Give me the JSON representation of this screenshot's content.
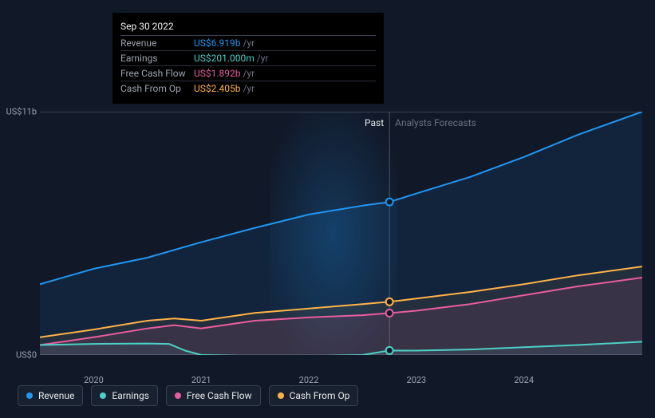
{
  "chart": {
    "background_color": "#111827",
    "grid_color": "#374151",
    "y_axis": {
      "min": 0,
      "max": 11,
      "labels": [
        {
          "value": 0,
          "text": "US$0"
        },
        {
          "value": 11,
          "text": "US$11b"
        }
      ]
    },
    "x_axis": {
      "min": 2019.5,
      "max": 2025.1,
      "ticks": [
        2020,
        2021,
        2022,
        2023,
        2024
      ]
    },
    "cursor_x": 2022.75,
    "period_labels": {
      "past": "Past",
      "forecast": "Analysts Forecasts"
    },
    "series": [
      {
        "id": "revenue",
        "label": "Revenue",
        "color": "#2196f3",
        "fill_opacity": 0.1,
        "points": [
          [
            2019.5,
            3.2
          ],
          [
            2020,
            3.9
          ],
          [
            2020.5,
            4.4
          ],
          [
            2021,
            5.1
          ],
          [
            2021.5,
            5.75
          ],
          [
            2022,
            6.35
          ],
          [
            2022.5,
            6.75
          ],
          [
            2022.75,
            6.919
          ],
          [
            2023,
            7.3
          ],
          [
            2023.5,
            8.05
          ],
          [
            2024,
            8.95
          ],
          [
            2024.5,
            9.95
          ],
          [
            2025.1,
            11.0
          ]
        ]
      },
      {
        "id": "cash_from_op",
        "label": "Cash From Op",
        "color": "#ffb347",
        "fill_opacity": 0.08,
        "points": [
          [
            2019.5,
            0.8
          ],
          [
            2020,
            1.15
          ],
          [
            2020.5,
            1.55
          ],
          [
            2020.75,
            1.65
          ],
          [
            2021,
            1.55
          ],
          [
            2021.5,
            1.9
          ],
          [
            2022,
            2.1
          ],
          [
            2022.5,
            2.3
          ],
          [
            2022.75,
            2.405
          ],
          [
            2023,
            2.55
          ],
          [
            2023.5,
            2.85
          ],
          [
            2024,
            3.2
          ],
          [
            2024.5,
            3.6
          ],
          [
            2025.1,
            4.0
          ]
        ]
      },
      {
        "id": "free_cash_flow",
        "label": "Free Cash Flow",
        "color": "#e85d9e",
        "fill_opacity": 0.1,
        "points": [
          [
            2019.5,
            0.45
          ],
          [
            2020,
            0.8
          ],
          [
            2020.5,
            1.2
          ],
          [
            2020.75,
            1.35
          ],
          [
            2021,
            1.2
          ],
          [
            2021.5,
            1.55
          ],
          [
            2022,
            1.7
          ],
          [
            2022.5,
            1.8
          ],
          [
            2022.75,
            1.892
          ],
          [
            2023,
            2.0
          ],
          [
            2023.5,
            2.3
          ],
          [
            2024,
            2.7
          ],
          [
            2024.5,
            3.1
          ],
          [
            2025.1,
            3.5
          ]
        ]
      },
      {
        "id": "earnings",
        "label": "Earnings",
        "color": "#4dd0c7",
        "fill_opacity": 0.08,
        "points": [
          [
            2019.5,
            0.45
          ],
          [
            2020,
            0.5
          ],
          [
            2020.5,
            0.52
          ],
          [
            2020.7,
            0.5
          ],
          [
            2020.85,
            0.2
          ],
          [
            2021,
            0.0
          ],
          [
            2021.5,
            -0.05
          ],
          [
            2022,
            -0.05
          ],
          [
            2022.5,
            0.0
          ],
          [
            2022.75,
            0.201
          ],
          [
            2023,
            0.2
          ],
          [
            2023.5,
            0.25
          ],
          [
            2024,
            0.35
          ],
          [
            2024.5,
            0.45
          ],
          [
            2025.1,
            0.6
          ]
        ]
      }
    ],
    "cursor_points": [
      {
        "series": "revenue",
        "y": 6.919,
        "color": "#2196f3"
      },
      {
        "series": "cash_from_op",
        "y": 2.405,
        "color": "#ffb347"
      },
      {
        "series": "free_cash_flow",
        "y": 1.892,
        "color": "#e85d9e"
      },
      {
        "series": "earnings",
        "y": 0.201,
        "color": "#4dd0c7"
      }
    ]
  },
  "tooltip": {
    "date": "Sep 30 2022",
    "rows": [
      {
        "label": "Revenue",
        "value": "US$6.919b",
        "unit": "/yr",
        "color": "#2196f3"
      },
      {
        "label": "Earnings",
        "value": "US$201.000m",
        "unit": "/yr",
        "color": "#4dd0c7"
      },
      {
        "label": "Free Cash Flow",
        "value": "US$1.892b",
        "unit": "/yr",
        "color": "#e85d9e"
      },
      {
        "label": "Cash From Op",
        "value": "US$2.405b",
        "unit": "/yr",
        "color": "#ffb347"
      }
    ]
  },
  "legend": [
    {
      "id": "revenue",
      "label": "Revenue",
      "color": "#2196f3"
    },
    {
      "id": "earnings",
      "label": "Earnings",
      "color": "#4dd0c7"
    },
    {
      "id": "free_cash_flow",
      "label": "Free Cash Flow",
      "color": "#e85d9e"
    },
    {
      "id": "cash_from_op",
      "label": "Cash From Op",
      "color": "#ffb347"
    }
  ]
}
